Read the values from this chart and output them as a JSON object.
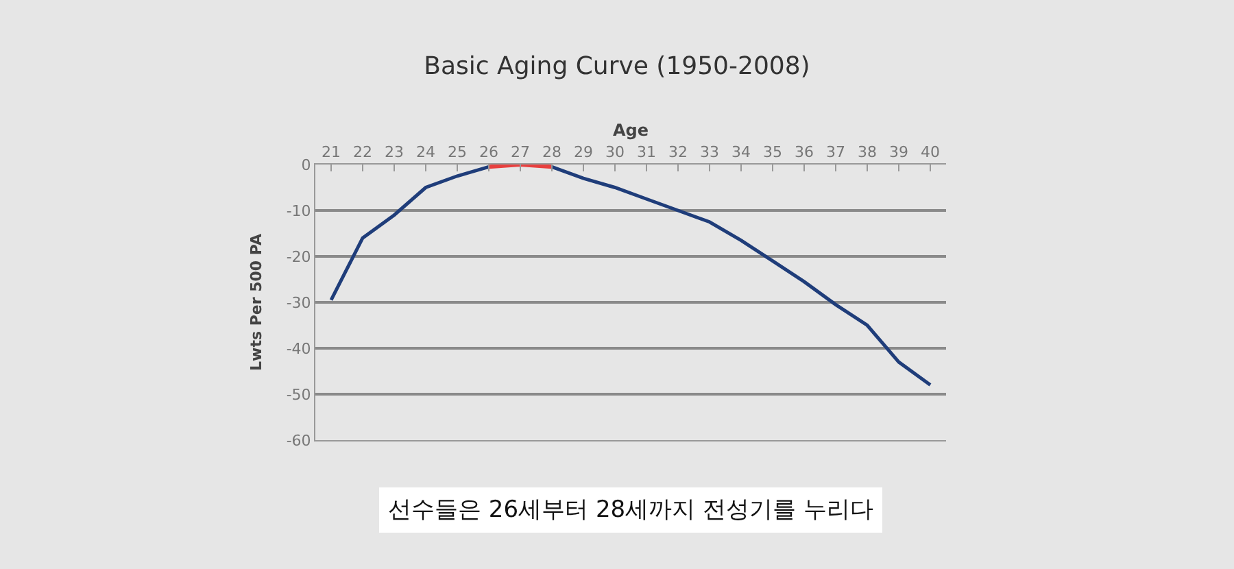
{
  "chart_data": {
    "type": "line",
    "title": "Basic Aging Curve (1950-2008)",
    "xlabel": "Age",
    "ylabel": "Lwts Per 500 PA",
    "categories": [
      "21",
      "22",
      "23",
      "24",
      "25",
      "26",
      "27",
      "28",
      "29",
      "30",
      "31",
      "32",
      "33",
      "34",
      "35",
      "36",
      "37",
      "38",
      "39",
      "40"
    ],
    "series": [
      {
        "color": "#1f3d7a",
        "values": [
          -29.5,
          -16,
          -11,
          -5,
          -2.5,
          -0.5,
          null,
          -0.5,
          -3,
          -5,
          -7.5,
          -10,
          -12.5,
          -16.5,
          -21,
          -25.5,
          -30.5,
          -35,
          -43,
          -48
        ]
      },
      {
        "color": "#e8403f",
        "values": [
          null,
          null,
          null,
          null,
          null,
          -0.5,
          0,
          -0.5,
          null,
          null,
          null,
          null,
          null,
          null,
          null,
          null,
          null,
          null,
          null,
          null
        ]
      }
    ],
    "ylim": [
      -60,
      0
    ],
    "yticks": [
      0,
      -10,
      -20,
      -30,
      -40,
      -50,
      -60
    ],
    "grid": "y",
    "marker": "none",
    "line_style": "solid",
    "annotations": [
      "선수들은 26세부터 28세까지 전성기를 누리다"
    ]
  }
}
